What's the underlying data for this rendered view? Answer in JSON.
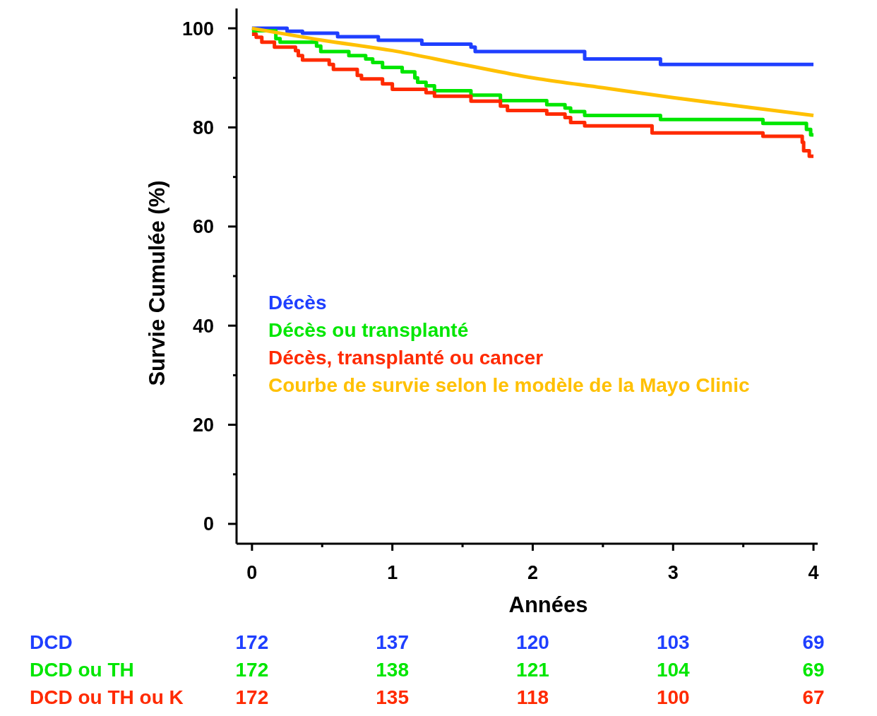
{
  "chart_data": {
    "type": "step",
    "xlabel": "Années",
    "ylabel": "Survie Cumulée (%)",
    "xlim": [
      -0.11,
      4.03
    ],
    "ylim": [
      -4,
      104
    ],
    "xticks": [
      0,
      {
        "value": 0.5,
        "label": null
      },
      1,
      {
        "value": 1.5,
        "label": null
      },
      2,
      {
        "value": 2.5,
        "label": null
      },
      3,
      {
        "value": 3.5,
        "label": null
      },
      4
    ],
    "yticks": [
      0,
      {
        "value": 10,
        "label": null
      },
      20,
      {
        "value": 30,
        "label": null
      },
      40,
      {
        "value": 50,
        "label": null
      },
      60,
      {
        "value": 70,
        "label": null
      },
      80,
      {
        "value": 90,
        "label": null
      },
      100
    ],
    "grid": false,
    "legend": "left",
    "marker": "none",
    "line_style": "solid",
    "series": [
      {
        "name": "Décès",
        "color": "#1f3fff",
        "x": [
          0,
          0.25,
          0.36,
          0.61,
          0.9,
          1.21,
          1.56,
          1.59,
          2.37,
          2.91,
          4.0
        ],
        "values": [
          100,
          99.4,
          99.0,
          98.3,
          97.6,
          96.8,
          96.2,
          95.3,
          93.8,
          92.7,
          92.7
        ]
      },
      {
        "name": "Décès ou transplanté",
        "color": "#00e600",
        "x": [
          0,
          0.17,
          0.2,
          0.46,
          0.49,
          0.69,
          0.81,
          0.86,
          0.93,
          1.07,
          1.16,
          1.18,
          1.24,
          1.3,
          1.56,
          1.77,
          2.1,
          2.23,
          2.27,
          2.37,
          2.91,
          3.64,
          3.95,
          3.98,
          4.0
        ],
        "values": [
          99.5,
          97.9,
          97.2,
          96.4,
          95.3,
          94.5,
          93.8,
          93.1,
          92.1,
          91.2,
          90.0,
          89.1,
          88.4,
          87.4,
          86.5,
          85.4,
          84.6,
          83.9,
          83.2,
          82.4,
          81.6,
          80.8,
          79.6,
          78.5,
          78.5
        ]
      },
      {
        "name": "Décès, transplanté ou cancer",
        "color": "#ff2a00",
        "x": [
          0,
          0.03,
          0.07,
          0.16,
          0.31,
          0.33,
          0.36,
          0.55,
          0.58,
          0.75,
          0.78,
          0.93,
          1.0,
          1.24,
          1.3,
          1.56,
          1.77,
          1.82,
          2.1,
          2.23,
          2.27,
          2.37,
          2.85,
          3.64,
          3.92,
          3.93,
          3.97,
          4.0
        ],
        "values": [
          98.8,
          98.2,
          97.2,
          96.2,
          95.5,
          94.5,
          93.6,
          92.7,
          91.7,
          90.5,
          89.8,
          88.8,
          87.7,
          87.0,
          86.3,
          85.3,
          84.3,
          83.4,
          82.7,
          82.0,
          81.0,
          80.3,
          78.9,
          78.2,
          77.0,
          75.3,
          74.2,
          74.2
        ]
      },
      {
        "name": "Courbe de survie selon le modèle de la Mayo Clinic",
        "color": "#ffc000",
        "type": "line",
        "x": [
          0,
          0.5,
          1,
          1.5,
          2,
          2.5,
          3,
          3.5,
          4.0
        ],
        "values": [
          100,
          97.6,
          95.5,
          92.7,
          90.0,
          88.0,
          86.0,
          84.2,
          82.4
        ]
      }
    ],
    "annotations": [
      "DCD",
      "172",
      "137",
      "120",
      "103",
      "69",
      "DCD ou TH",
      "172",
      "138",
      "121",
      "104",
      "69",
      "DCD ou TH ou K",
      "172",
      "135",
      "118",
      "100",
      "67"
    ]
  }
}
